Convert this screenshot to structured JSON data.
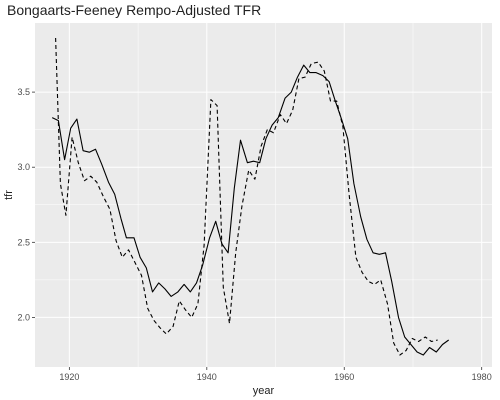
{
  "chart_data": {
    "type": "line",
    "title": "Bongaarts-Feeney Rempo-Adjusted TFR",
    "xlabel": "year",
    "ylabel": "tfr",
    "xlim": [
      1915,
      1981.5
    ],
    "ylim": [
      1.67,
      3.96
    ],
    "x_ticks": [
      1920,
      1940,
      1960,
      1980
    ],
    "y_ticks": [
      2.0,
      2.5,
      3.0,
      3.5
    ],
    "x_tick_labels": [
      "1920",
      "1940",
      "1960",
      "1980"
    ],
    "y_tick_labels": [
      "2.0",
      "2.5",
      "3.0",
      "3.5"
    ],
    "grid": true,
    "panel_background": "#ebebeb",
    "grid_major_color": "#ffffff",
    "series": [
      {
        "line_style": "solid",
        "color": "#000000",
        "points": [
          [
            1917.5,
            3.33
          ],
          [
            1918.4,
            3.31
          ],
          [
            1919.3,
            3.05
          ],
          [
            1920.2,
            3.26
          ],
          [
            1921.1,
            3.32
          ],
          [
            1922.0,
            3.11
          ],
          [
            1922.9,
            3.1
          ],
          [
            1923.8,
            3.12
          ],
          [
            1924.7,
            3.02
          ],
          [
            1925.7,
            2.9
          ],
          [
            1926.6,
            2.82
          ],
          [
            1927.5,
            2.66
          ],
          [
            1928.3,
            2.53
          ],
          [
            1929.4,
            2.53
          ],
          [
            1930.3,
            2.4
          ],
          [
            1931.2,
            2.33
          ],
          [
            1932.1,
            2.17
          ],
          [
            1933.0,
            2.23
          ],
          [
            1933.9,
            2.19
          ],
          [
            1934.8,
            2.14
          ],
          [
            1935.8,
            2.17
          ],
          [
            1936.7,
            2.22
          ],
          [
            1937.6,
            2.17
          ],
          [
            1938.5,
            2.23
          ],
          [
            1939.4,
            2.35
          ],
          [
            1940.4,
            2.53
          ],
          [
            1941.3,
            2.64
          ],
          [
            1942.2,
            2.49
          ],
          [
            1943.1,
            2.43
          ],
          [
            1944.0,
            2.86
          ],
          [
            1944.9,
            3.18
          ],
          [
            1945.9,
            3.03
          ],
          [
            1946.8,
            3.04
          ],
          [
            1947.7,
            3.03
          ],
          [
            1948.6,
            3.19
          ],
          [
            1949.5,
            3.28
          ],
          [
            1950.4,
            3.33
          ],
          [
            1951.4,
            3.46
          ],
          [
            1952.3,
            3.5
          ],
          [
            1953.2,
            3.6
          ],
          [
            1954.1,
            3.68
          ],
          [
            1955.0,
            3.63
          ],
          [
            1955.9,
            3.63
          ],
          [
            1956.9,
            3.61
          ],
          [
            1957.8,
            3.57
          ],
          [
            1958.7,
            3.44
          ],
          [
            1959.6,
            3.32
          ],
          [
            1960.5,
            3.19
          ],
          [
            1961.4,
            2.89
          ],
          [
            1962.4,
            2.67
          ],
          [
            1963.3,
            2.52
          ],
          [
            1964.2,
            2.43
          ],
          [
            1965.1,
            2.42
          ],
          [
            1966.0,
            2.43
          ],
          [
            1966.9,
            2.24
          ],
          [
            1967.9,
            2.0
          ],
          [
            1968.8,
            1.87
          ],
          [
            1969.7,
            1.82
          ],
          [
            1970.6,
            1.77
          ],
          [
            1971.5,
            1.75
          ],
          [
            1972.4,
            1.8
          ],
          [
            1973.4,
            1.77
          ],
          [
            1974.3,
            1.82
          ],
          [
            1975.2,
            1.85
          ]
        ]
      },
      {
        "line_style": "dashed",
        "color": "#000000",
        "points": [
          [
            1918.0,
            3.86
          ],
          [
            1918.7,
            2.89
          ],
          [
            1919.5,
            2.68
          ],
          [
            1920.4,
            3.2
          ],
          [
            1921.3,
            3.03
          ],
          [
            1922.2,
            2.91
          ],
          [
            1923.1,
            2.94
          ],
          [
            1924.0,
            2.9
          ],
          [
            1925.0,
            2.8
          ],
          [
            1925.9,
            2.72
          ],
          [
            1926.8,
            2.51
          ],
          [
            1927.7,
            2.4
          ],
          [
            1928.6,
            2.45
          ],
          [
            1929.5,
            2.37
          ],
          [
            1930.5,
            2.28
          ],
          [
            1931.4,
            2.06
          ],
          [
            1932.3,
            1.98
          ],
          [
            1933.2,
            1.93
          ],
          [
            1934.1,
            1.89
          ],
          [
            1935.1,
            1.94
          ],
          [
            1936.0,
            2.11
          ],
          [
            1936.9,
            2.05
          ],
          [
            1937.8,
            2.0
          ],
          [
            1938.7,
            2.09
          ],
          [
            1939.6,
            2.48
          ],
          [
            1940.6,
            3.45
          ],
          [
            1941.5,
            3.41
          ],
          [
            1942.4,
            2.2
          ],
          [
            1943.3,
            1.96
          ],
          [
            1944.2,
            2.43
          ],
          [
            1945.1,
            2.74
          ],
          [
            1946.1,
            2.98
          ],
          [
            1947.0,
            2.92
          ],
          [
            1947.9,
            3.14
          ],
          [
            1948.8,
            3.25
          ],
          [
            1949.7,
            3.23
          ],
          [
            1950.7,
            3.35
          ],
          [
            1951.6,
            3.29
          ],
          [
            1952.5,
            3.38
          ],
          [
            1953.4,
            3.59
          ],
          [
            1954.3,
            3.6
          ],
          [
            1955.2,
            3.69
          ],
          [
            1956.2,
            3.7
          ],
          [
            1957.1,
            3.64
          ],
          [
            1958.0,
            3.44
          ],
          [
            1958.9,
            3.44
          ],
          [
            1959.8,
            3.27
          ],
          [
            1960.7,
            2.82
          ],
          [
            1961.7,
            2.4
          ],
          [
            1962.6,
            2.3
          ],
          [
            1963.5,
            2.24
          ],
          [
            1964.4,
            2.22
          ],
          [
            1965.3,
            2.25
          ],
          [
            1966.3,
            2.09
          ],
          [
            1967.2,
            1.83
          ],
          [
            1968.1,
            1.75
          ],
          [
            1969.0,
            1.78
          ],
          [
            1969.9,
            1.86
          ],
          [
            1970.8,
            1.84
          ],
          [
            1971.8,
            1.87
          ],
          [
            1972.7,
            1.84
          ],
          [
            1973.6,
            1.85
          ]
        ]
      }
    ]
  }
}
